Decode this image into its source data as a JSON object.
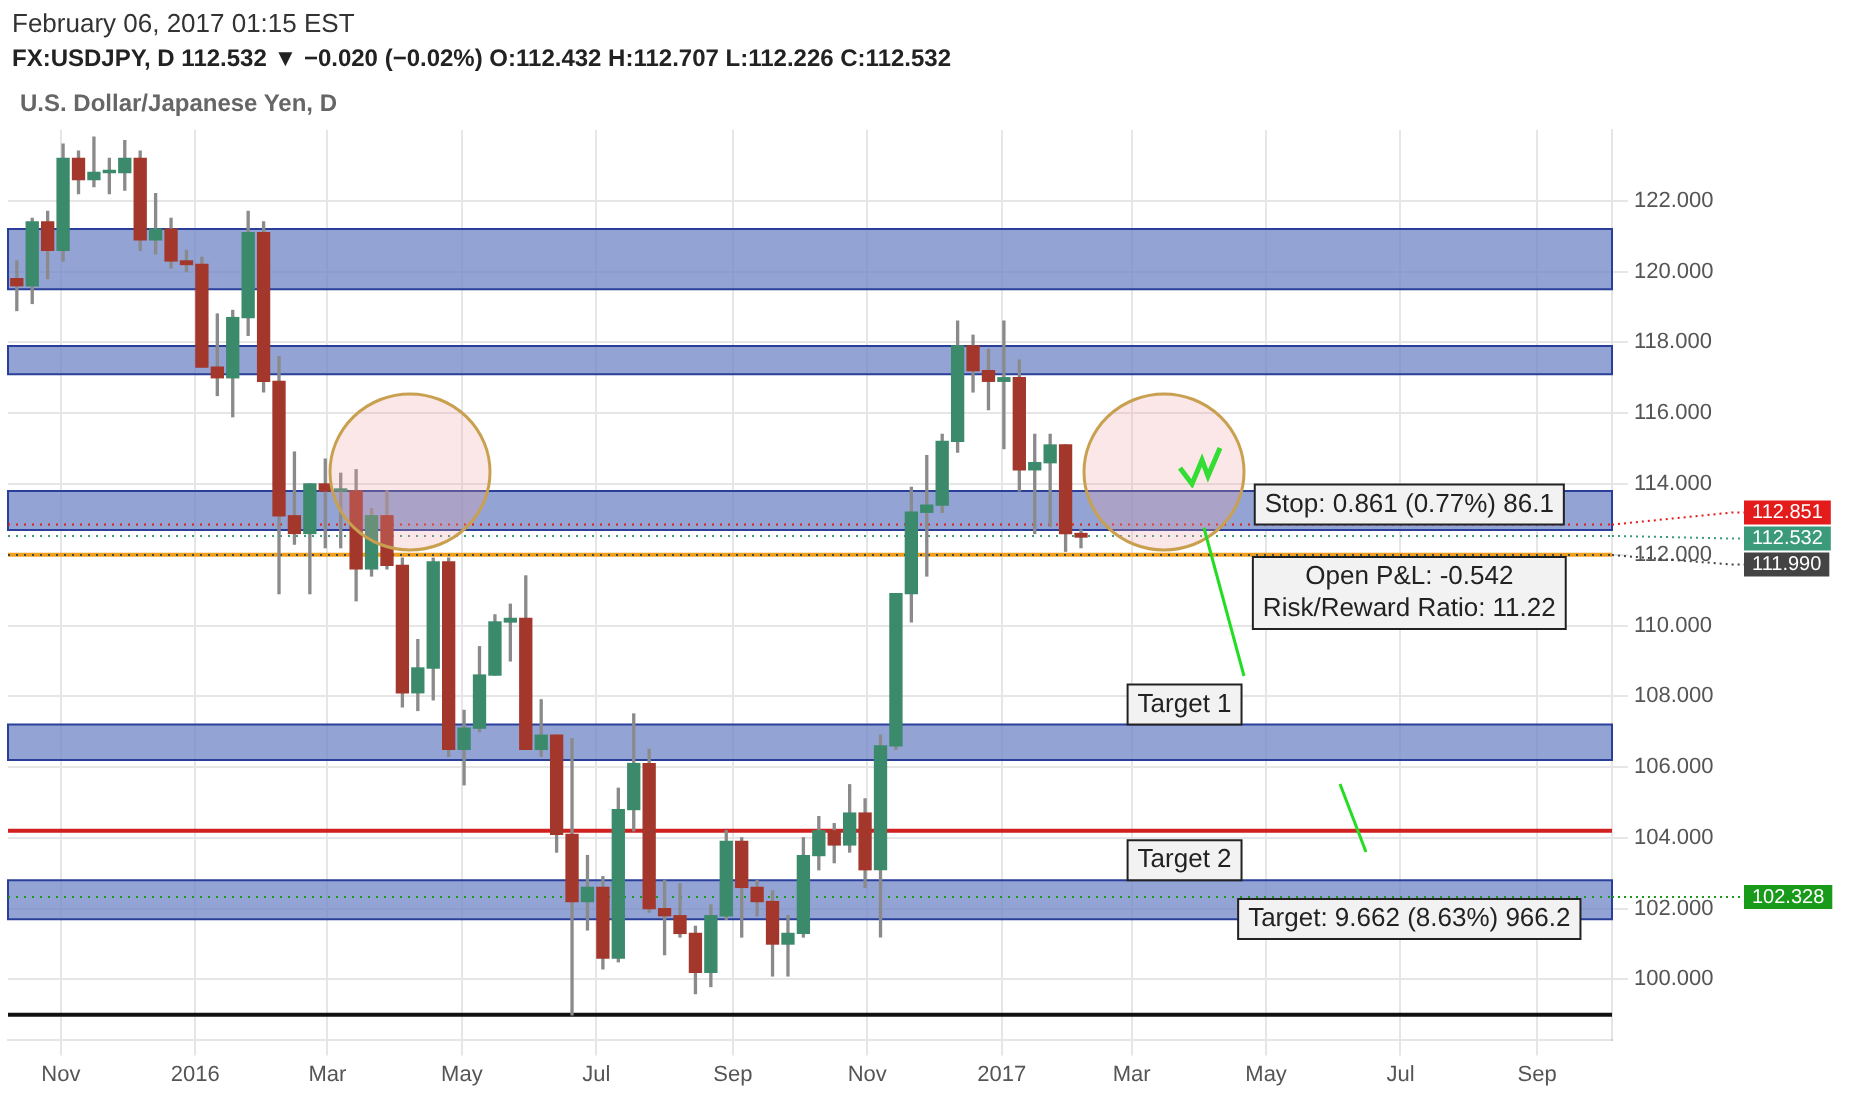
{
  "chart_data": {
    "type": "candlestick",
    "title": "February 06, 2017 01:15 EST",
    "subtitle": "FX:USDJPY, D 112.532 ▼ −0.020 (−0.02%) O:112.432 H:112.707 L:112.226 C:112.532",
    "x": [
      "2015-10-12",
      "2015-10-19",
      "2015-10-26",
      "2015-11-02",
      "2015-11-09",
      "2015-11-16",
      "2015-11-23",
      "2015-11-30",
      "2015-12-07",
      "2015-12-14",
      "2015-12-21",
      "2015-12-28",
      "2016-01-04",
      "2016-01-11",
      "2016-01-18",
      "2016-01-25",
      "2016-02-01",
      "2016-02-08",
      "2016-02-15",
      "2016-02-22",
      "2016-02-29",
      "2016-03-07",
      "2016-03-14",
      "2016-03-21",
      "2016-03-28",
      "2016-04-04",
      "2016-04-11",
      "2016-04-18",
      "2016-04-25",
      "2016-05-02",
      "2016-05-09",
      "2016-05-16",
      "2016-05-23",
      "2016-05-30",
      "2016-06-06",
      "2016-06-13",
      "2016-06-20",
      "2016-06-27",
      "2016-07-04",
      "2016-07-11",
      "2016-07-18",
      "2016-07-25",
      "2016-08-01",
      "2016-08-08",
      "2016-08-15",
      "2016-08-22",
      "2016-08-29",
      "2016-09-05",
      "2016-09-12",
      "2016-09-19",
      "2016-09-26",
      "2016-10-03",
      "2016-10-10",
      "2016-10-17",
      "2016-10-24",
      "2016-10-31",
      "2016-11-07",
      "2016-11-14",
      "2016-11-21",
      "2016-11-28",
      "2016-12-05",
      "2016-12-12",
      "2016-12-19",
      "2016-12-26",
      "2017-01-02",
      "2017-01-09",
      "2017-01-16",
      "2017-01-23",
      "2017-01-30",
      "2017-02-06"
    ],
    "ohlc": [
      [
        119.8,
        120.3,
        118.9,
        119.6
      ],
      [
        119.6,
        121.5,
        119.1,
        121.4
      ],
      [
        121.4,
        121.7,
        119.8,
        120.6
      ],
      [
        120.6,
        123.6,
        120.3,
        123.2
      ],
      [
        123.2,
        123.4,
        122.2,
        122.6
      ],
      [
        122.6,
        123.8,
        122.4,
        122.8
      ],
      [
        122.8,
        123.2,
        122.2,
        122.8
      ],
      [
        122.8,
        123.7,
        122.3,
        123.2
      ],
      [
        123.2,
        123.4,
        120.6,
        120.9
      ],
      [
        120.9,
        122.2,
        120.5,
        121.2
      ],
      [
        121.2,
        121.5,
        120.1,
        120.3
      ],
      [
        120.3,
        120.6,
        120.0,
        120.2
      ],
      [
        120.2,
        120.4,
        117.3,
        117.3
      ],
      [
        117.3,
        118.8,
        116.5,
        117.0
      ],
      [
        117.0,
        118.9,
        115.9,
        118.7
      ],
      [
        118.7,
        121.7,
        118.2,
        121.1
      ],
      [
        121.1,
        121.4,
        116.6,
        116.9
      ],
      [
        116.9,
        117.6,
        110.9,
        113.1
      ],
      [
        113.1,
        114.9,
        112.3,
        112.6
      ],
      [
        112.6,
        114.0,
        110.9,
        114.0
      ],
      [
        114.0,
        114.7,
        112.2,
        113.8
      ],
      [
        113.8,
        114.3,
        112.2,
        113.8
      ],
      [
        113.8,
        114.4,
        110.7,
        111.6
      ],
      [
        111.6,
        113.3,
        111.4,
        113.1
      ],
      [
        113.1,
        113.8,
        111.6,
        111.7
      ],
      [
        111.7,
        111.9,
        107.7,
        108.1
      ],
      [
        108.1,
        109.6,
        107.6,
        108.8
      ],
      [
        108.8,
        111.9,
        107.9,
        111.8
      ],
      [
        111.8,
        111.9,
        106.3,
        106.5
      ],
      [
        106.5,
        107.6,
        105.5,
        107.1
      ],
      [
        107.1,
        109.4,
        107.0,
        108.6
      ],
      [
        108.6,
        110.3,
        108.6,
        110.1
      ],
      [
        110.1,
        110.6,
        109.0,
        110.2
      ],
      [
        110.2,
        111.4,
        106.5,
        106.5
      ],
      [
        106.5,
        107.9,
        106.3,
        106.9
      ],
      [
        106.9,
        106.9,
        103.6,
        104.1
      ],
      [
        104.1,
        106.8,
        99.0,
        102.2
      ],
      [
        102.2,
        103.5,
        101.4,
        102.6
      ],
      [
        102.6,
        102.9,
        100.3,
        100.6
      ],
      [
        100.6,
        105.4,
        100.5,
        104.8
      ],
      [
        104.8,
        107.5,
        104.2,
        106.1
      ],
      [
        106.1,
        106.5,
        101.9,
        102.0
      ],
      [
        102.0,
        102.8,
        100.7,
        101.8
      ],
      [
        101.8,
        102.7,
        101.2,
        101.3
      ],
      [
        101.3,
        101.5,
        99.6,
        100.2
      ],
      [
        100.2,
        102.1,
        99.8,
        101.8
      ],
      [
        101.8,
        104.2,
        101.7,
        103.9
      ],
      [
        103.9,
        104.0,
        101.2,
        102.6
      ],
      [
        102.6,
        102.8,
        101.8,
        102.2
      ],
      [
        102.2,
        102.5,
        100.1,
        101.0
      ],
      [
        101.0,
        101.8,
        100.1,
        101.3
      ],
      [
        101.3,
        104.0,
        101.2,
        103.5
      ],
      [
        103.5,
        104.6,
        103.1,
        104.2
      ],
      [
        104.2,
        104.4,
        103.3,
        103.8
      ],
      [
        103.8,
        105.5,
        103.6,
        104.7
      ],
      [
        104.7,
        105.1,
        102.6,
        103.1
      ],
      [
        103.1,
        106.9,
        101.2,
        106.6
      ],
      [
        106.6,
        110.9,
        106.5,
        110.9
      ],
      [
        110.9,
        113.9,
        110.1,
        113.2
      ],
      [
        113.2,
        114.8,
        111.4,
        113.4
      ],
      [
        113.4,
        115.4,
        113.2,
        115.2
      ],
      [
        115.2,
        118.6,
        114.9,
        117.9
      ],
      [
        117.9,
        118.2,
        116.6,
        117.2
      ],
      [
        117.2,
        117.8,
        116.1,
        116.9
      ],
      [
        116.9,
        118.6,
        115.0,
        117.0
      ],
      [
        117.0,
        117.5,
        113.8,
        114.4
      ],
      [
        114.4,
        115.4,
        112.6,
        114.6
      ],
      [
        114.6,
        115.4,
        112.8,
        115.1
      ],
      [
        115.1,
        115.1,
        112.1,
        112.6
      ],
      [
        112.6,
        112.7,
        112.2,
        112.5
      ]
    ],
    "colors": [
      "#a3372c",
      "#3b8a6b",
      "#a3372c",
      "#3b8a6b",
      "#a3372c",
      "#3b8a6b",
      "#3b8a6b",
      "#3b8a6b",
      "#a3372c",
      "#3b8a6b",
      "#a3372c",
      "#a3372c",
      "#a3372c",
      "#a3372c",
      "#3b8a6b",
      "#3b8a6b",
      "#a3372c",
      "#a3372c",
      "#a3372c",
      "#3b8a6b",
      "#a3372c",
      "#3b8a6b",
      "#a3372c",
      "#3b8a6b",
      "#a3372c",
      "#a3372c",
      "#3b8a6b",
      "#3b8a6b",
      "#a3372c",
      "#3b8a6b",
      "#3b8a6b",
      "#3b8a6b",
      "#3b8a6b",
      "#a3372c",
      "#3b8a6b",
      "#a3372c",
      "#a3372c",
      "#3b8a6b",
      "#a3372c",
      "#3b8a6b",
      "#3b8a6b",
      "#a3372c",
      "#a3372c",
      "#a3372c",
      "#a3372c",
      "#3b8a6b",
      "#3b8a6b",
      "#a3372c",
      "#a3372c",
      "#a3372c",
      "#3b8a6b",
      "#3b8a6b",
      "#3b8a6b",
      "#a3372c",
      "#3b8a6b",
      "#a3372c",
      "#3b8a6b",
      "#3b8a6b",
      "#3b8a6b",
      "#3b8a6b",
      "#3b8a6b",
      "#3b8a6b",
      "#a3372c",
      "#a3372c",
      "#3b8a6b",
      "#a3372c",
      "#3b8a6b",
      "#3b8a6b",
      "#a3372c",
      "#a3372c"
    ],
    "xlim": [
      "2015-10-08",
      "2017-10-05"
    ],
    "xticks": [
      {
        "value": "2015-11-01",
        "label": "Nov"
      },
      {
        "value": "2016-01-01",
        "label": "2016"
      },
      {
        "value": "2016-03-01",
        "label": "Mar"
      },
      {
        "value": "2016-05-01",
        "label": "May"
      },
      {
        "value": "2016-07-01",
        "label": "Jul"
      },
      {
        "value": "2016-09-01",
        "label": "Sep"
      },
      {
        "value": "2016-11-01",
        "label": "Nov"
      },
      {
        "value": "2017-01-01",
        "label": "2017"
      },
      {
        "value": "2017-03-01",
        "label": "Mar"
      },
      {
        "value": "2017-05-01",
        "label": "May"
      },
      {
        "value": "2017-07-01",
        "label": "Jul"
      },
      {
        "value": "2017-09-01",
        "label": "Sep"
      }
    ],
    "ylim": [
      98.3,
      124.0
    ],
    "yticks": [
      {
        "value": 100,
        "label": "100.000"
      },
      {
        "value": 102,
        "label": "102.000"
      },
      {
        "value": 104,
        "label": "104.000"
      },
      {
        "value": 106,
        "label": "106.000"
      },
      {
        "value": 108,
        "label": "108.000"
      },
      {
        "value": 110,
        "label": "110.000"
      },
      {
        "value": 112,
        "label": "112.000"
      },
      {
        "value": 114,
        "label": "114.000"
      },
      {
        "value": 116,
        "label": "116.000"
      },
      {
        "value": 118,
        "label": "118.000"
      },
      {
        "value": 120,
        "label": "120.000"
      },
      {
        "value": 122,
        "label": "122.000"
      }
    ],
    "grid": true,
    "bands": [
      {
        "axis": "y",
        "from": 119.5,
        "to": 121.2,
        "color": "#6f86c6"
      },
      {
        "axis": "y",
        "from": 117.1,
        "to": 117.9,
        "color": "#6f86c6"
      },
      {
        "axis": "y",
        "from": 112.7,
        "to": 113.8,
        "color": "#6f86c6"
      },
      {
        "axis": "y",
        "from": 106.2,
        "to": 107.2,
        "color": "#6f86c6"
      },
      {
        "axis": "y",
        "from": 101.7,
        "to": 102.8,
        "color": "#6f86c6"
      }
    ],
    "ref_lines": [
      {
        "axis": "y",
        "value": 112.0,
        "color": "#f0a020",
        "line_style": "solid"
      },
      {
        "axis": "y",
        "value": 104.2,
        "color": "#d02020",
        "line_style": "solid"
      },
      {
        "axis": "y",
        "value": 99.0,
        "color": "#111111",
        "line_style": "solid"
      },
      {
        "axis": "y",
        "value": 112.532,
        "label": "112.532",
        "color": "#3a9a7a",
        "line_style": "dotted"
      },
      {
        "axis": "y",
        "value": 112.851,
        "label": "112.851",
        "color": "#e31b1b",
        "line_style": "dotted"
      },
      {
        "axis": "y",
        "value": 111.99,
        "label": "111.990",
        "color": "#444444",
        "line_style": "dotted"
      },
      {
        "axis": "y",
        "value": 102.328,
        "label": "102.328",
        "color": "#1a9a1a",
        "line_style": "dotted"
      }
    ],
    "annotations": [
      "U.S. Dollar/Japanese Yen, D",
      {
        "text": "Target 1",
        "x": "2017-03-25",
        "y": 107.2
      },
      {
        "text": "Target 2",
        "x": "2017-03-25",
        "y": 102.8
      },
      {
        "text": "Stop: 0.861 (0.77%) 86.1",
        "x": "2017-07-05",
        "y": 112.851
      },
      {
        "text": "Open P&L: -0.542\nRisk/Reward Ratio: 11.22",
        "x": "2017-07-05",
        "y": 111.99
      },
      {
        "text": "Target: 9.662 (8.63%) 966.2",
        "x": "2017-07-05",
        "y": 102.328
      }
    ]
  }
}
